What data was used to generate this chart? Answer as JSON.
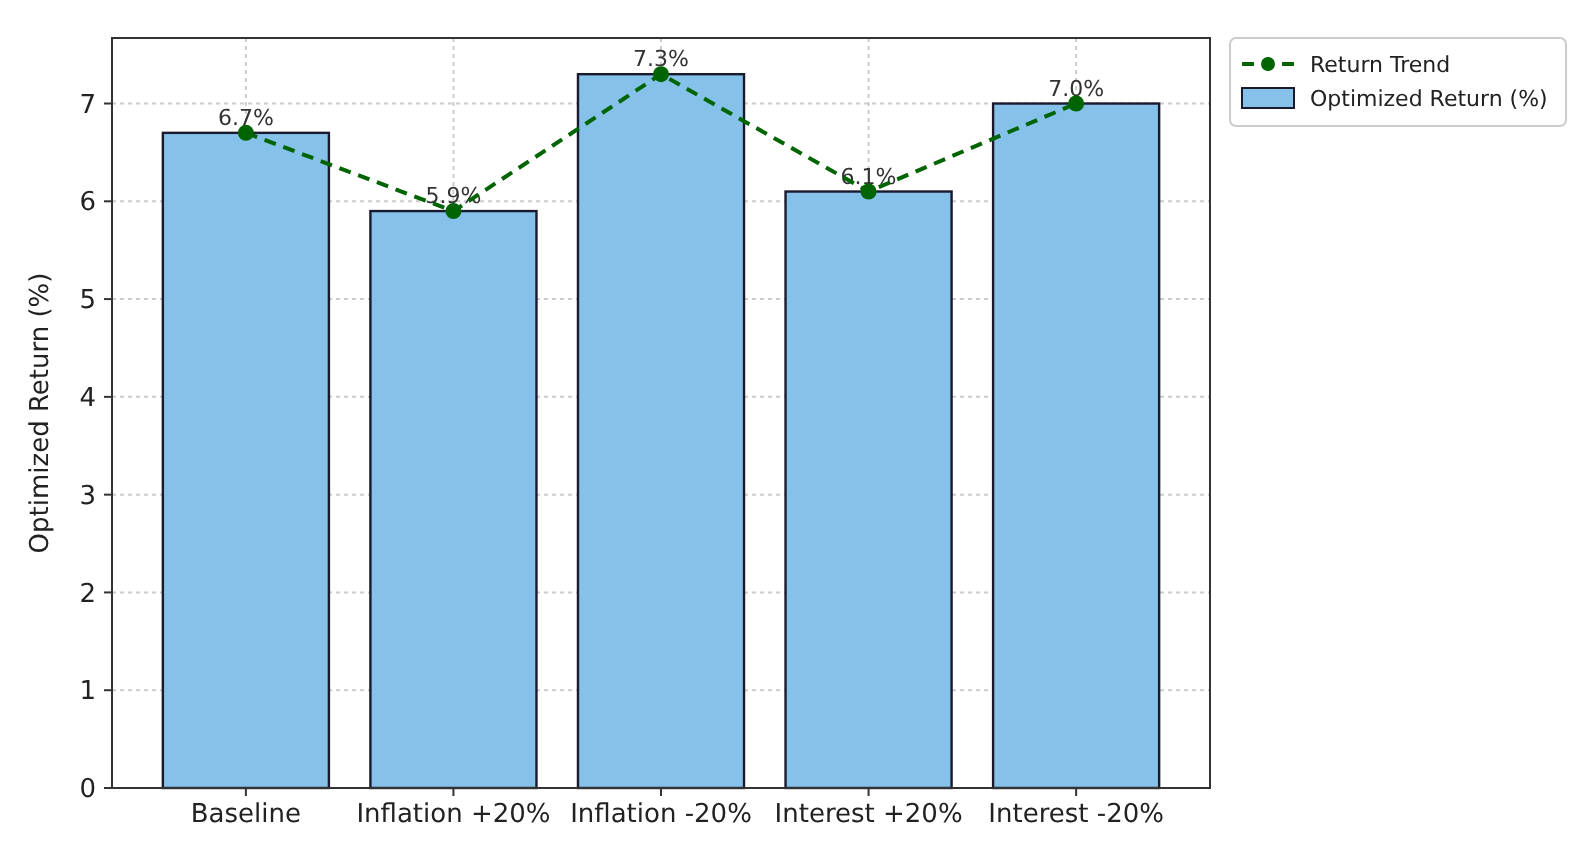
{
  "chart_data": {
    "type": "bar",
    "ylabel": "Optimized Return (%)",
    "categories": [
      "Baseline",
      "Inflation +20%",
      "Inflation -20%",
      "Interest +20%",
      "Interest -20%"
    ],
    "series": [
      {
        "name": "Return Trend",
        "type": "line",
        "color": "#006400",
        "values": [
          6.7,
          5.9,
          7.3,
          6.1,
          7.0
        ],
        "marker": "circle",
        "line_style": "dashed"
      },
      {
        "name": "Optimized Return (%)",
        "color": "#85c1e9",
        "values": [
          6.7,
          5.9,
          7.3,
          6.1,
          7.0
        ],
        "value_labels": [
          "6.7%",
          "5.9%",
          "7.3%",
          "6.1%",
          "7.0%"
        ]
      }
    ],
    "ylim": [
      0,
      7.67
    ],
    "yticks": [
      0,
      1,
      2,
      3,
      4,
      5,
      6,
      7
    ],
    "grid": true,
    "legend": "top right"
  }
}
